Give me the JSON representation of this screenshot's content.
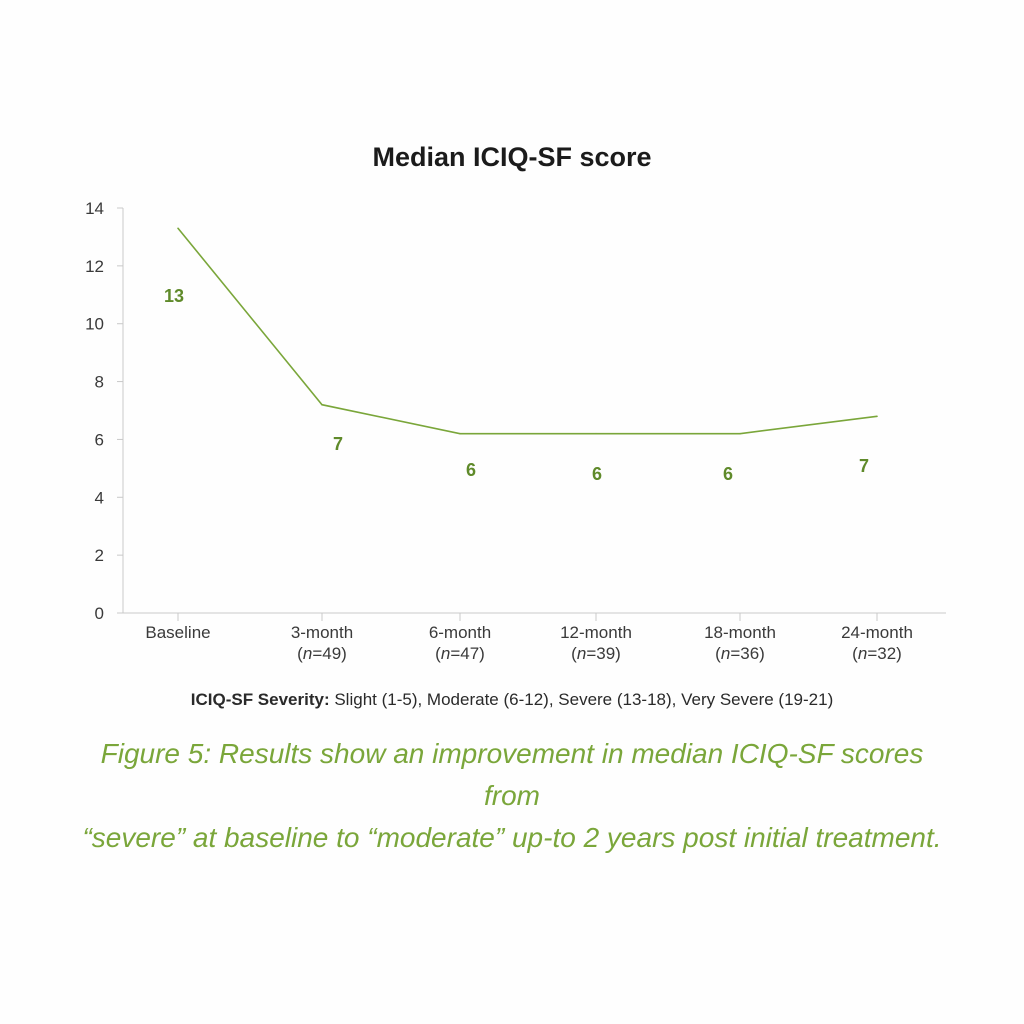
{
  "chart_data": {
    "type": "line",
    "title": "Median ICIQ-SF score",
    "categories": [
      {
        "label": "Baseline",
        "n_prefix": "",
        "n_italic": "",
        "n_value": "",
        "n_suffix": ""
      },
      {
        "label": "3-month",
        "n_prefix": "(",
        "n_italic": "n",
        "n_value": "=49",
        "n_suffix": ")"
      },
      {
        "label": "6-month",
        "n_prefix": "(",
        "n_italic": "n",
        "n_value": "=47",
        "n_suffix": ")"
      },
      {
        "label": "12-month",
        "n_prefix": "(",
        "n_italic": "n",
        "n_value": "=39",
        "n_suffix": ")"
      },
      {
        "label": "18-month",
        "n_prefix": "(",
        "n_italic": "n",
        "n_value": "=36",
        "n_suffix": ")"
      },
      {
        "label": "24-month",
        "n_prefix": "(",
        "n_italic": "n",
        "n_value": "=32",
        "n_suffix": ")"
      }
    ],
    "series": [
      {
        "values": [
          13.3,
          7.2,
          6.2,
          6.2,
          6.2,
          6.8
        ],
        "data_labels": [
          "13",
          "7",
          "6",
          "6",
          "6",
          "7"
        ]
      }
    ],
    "ylim": [
      0,
      14
    ],
    "yticks": [
      0,
      2,
      4,
      6,
      8,
      10,
      12,
      14
    ],
    "grid": false,
    "line_color": "#7aa63a",
    "label_color": "#5f8a2a"
  },
  "severity": {
    "heading": "ICIQ-SF Severity:",
    "text": " Slight (1-5), Moderate (6-12), Severe (13-18), Very Severe (19-21)"
  },
  "caption": {
    "line1": "Figure 5: Results show an improvement in median ICIQ-SF scores from",
    "line2": "“severe” at baseline to  “moderate”  up-to 2 years post initial treatment."
  }
}
